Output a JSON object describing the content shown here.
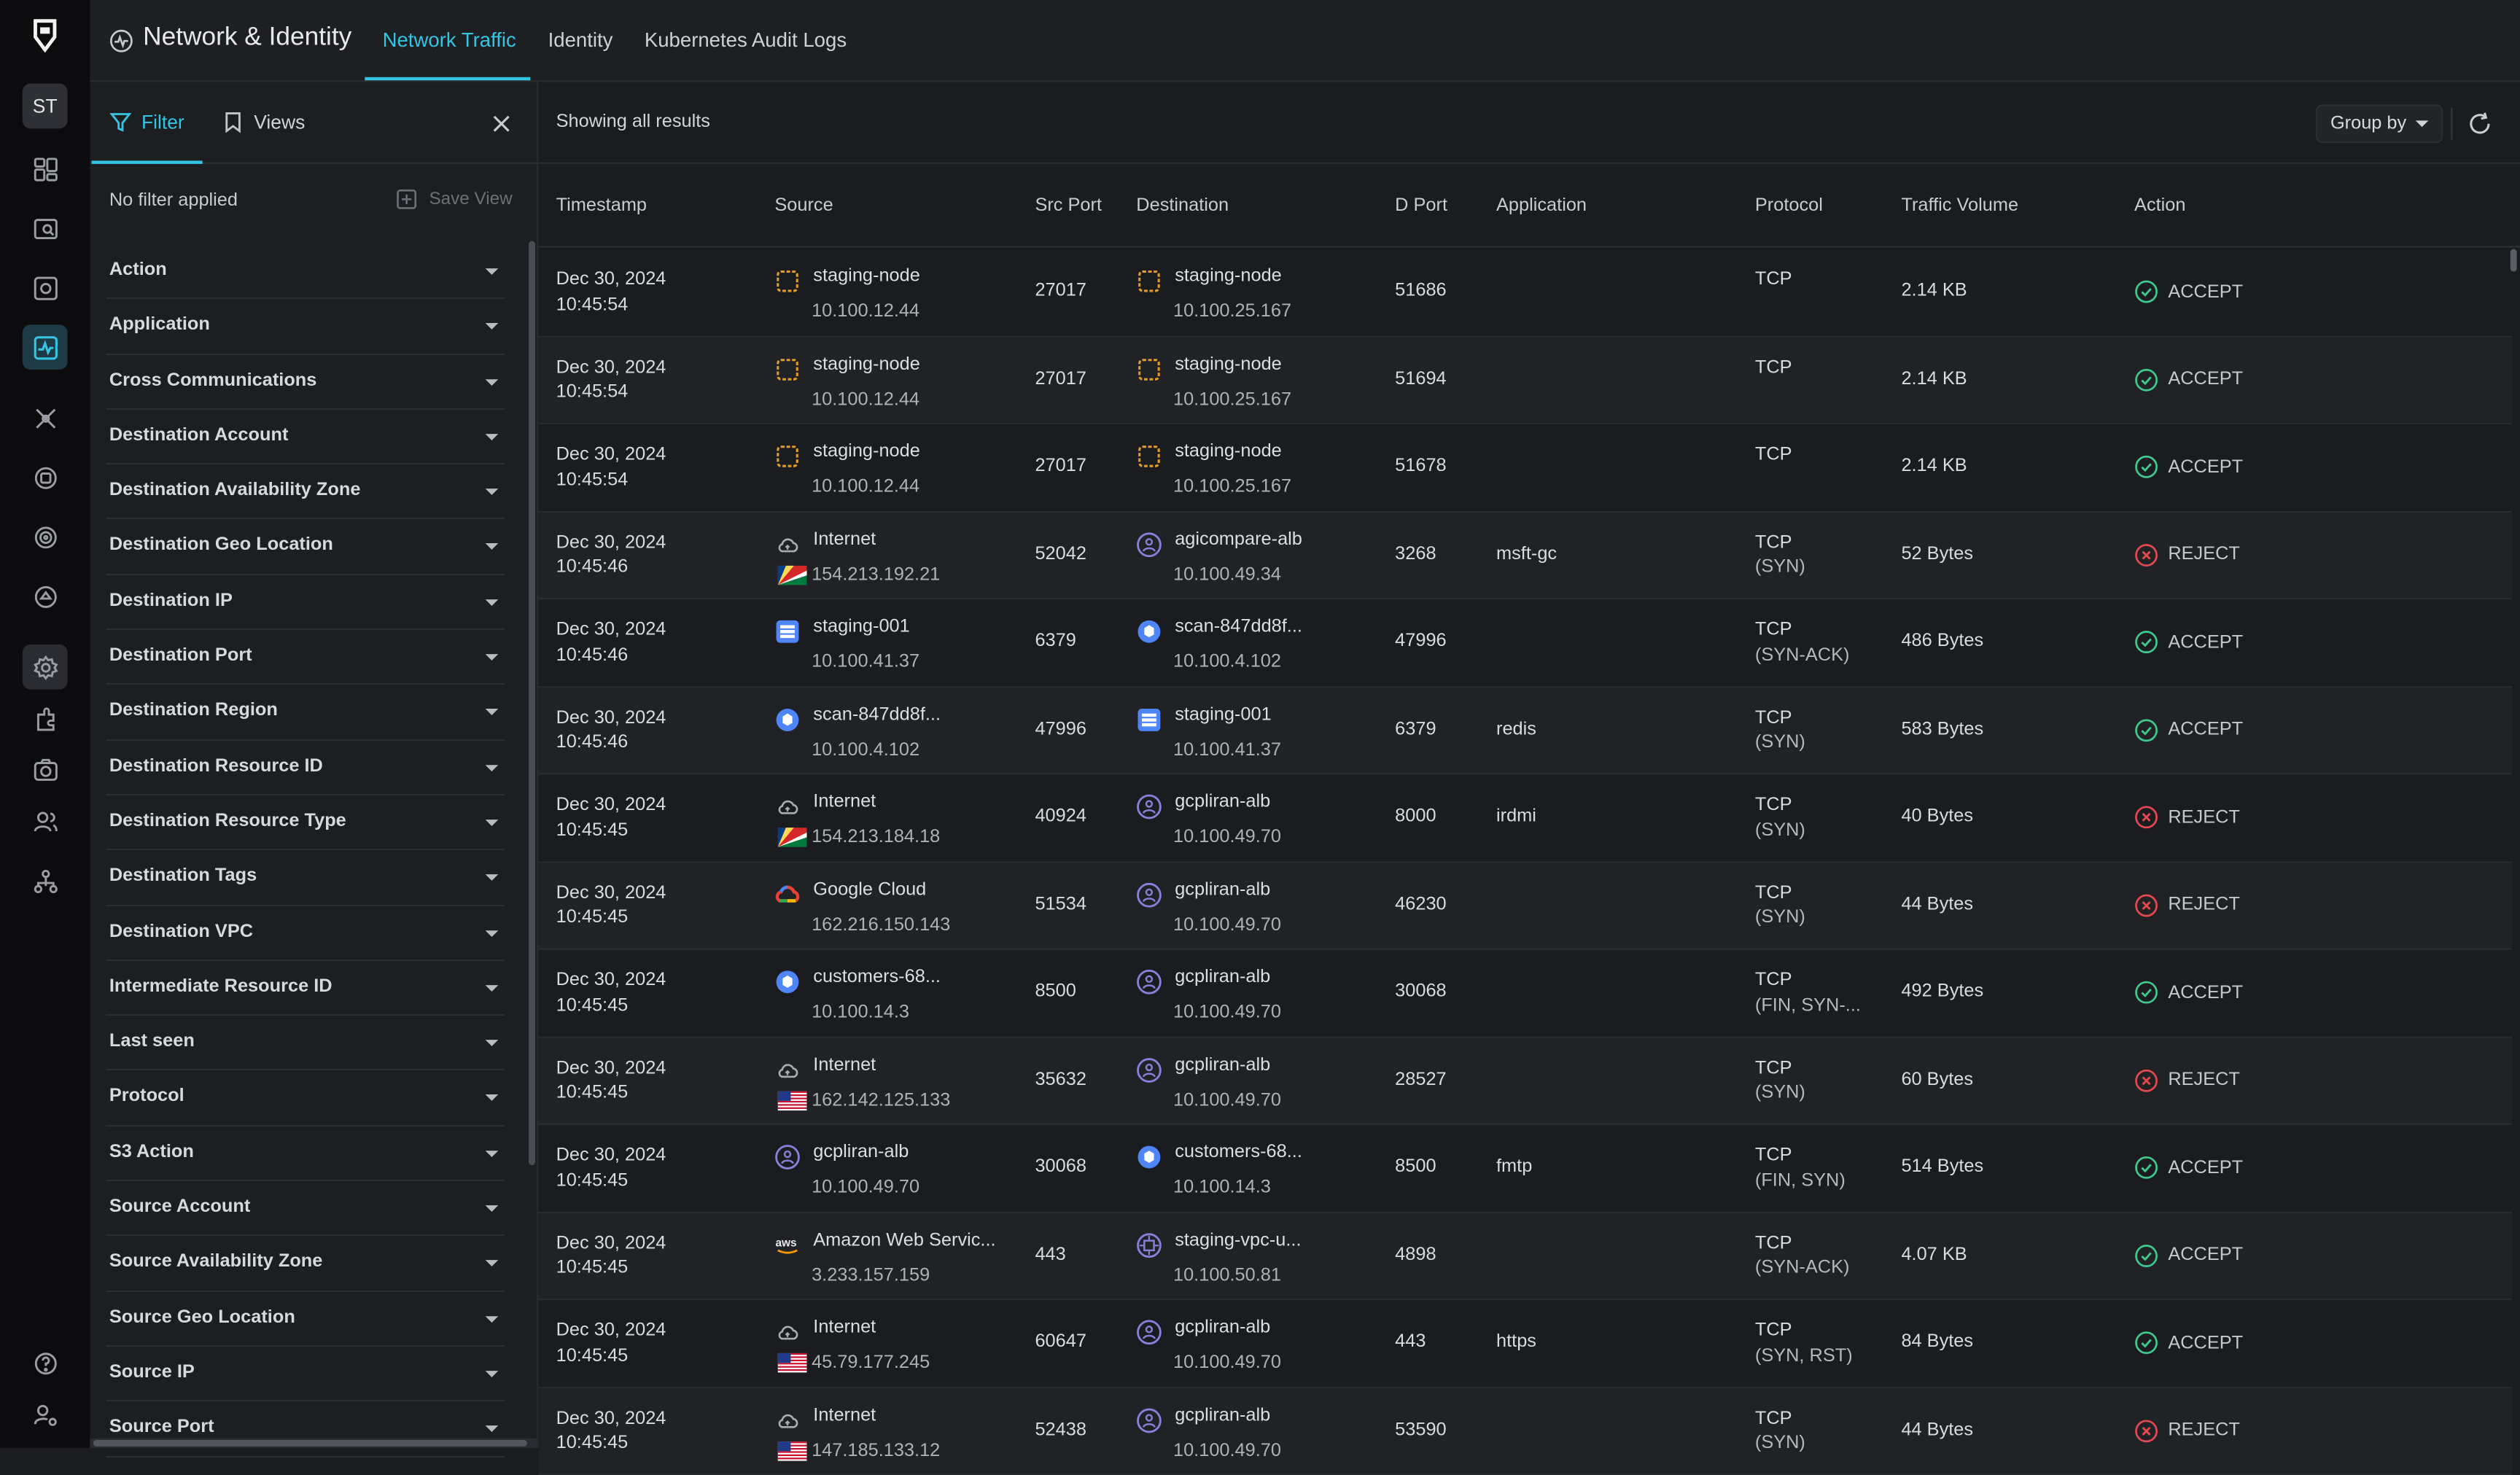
{
  "rail": {
    "avatar": "ST",
    "icons": [
      "logo-icon",
      "dashboard-icon",
      "inventory-icon",
      "findings-icon",
      "network-icon",
      "attack-path-icon",
      "compliance-icon",
      "vulnerability-icon",
      "policy-icon",
      "settings-icon",
      "integrations-icon",
      "assets-icon",
      "users-icon",
      "organization-icon",
      "help-icon",
      "user-settings-icon"
    ]
  },
  "header": {
    "title": "Network & Identity",
    "tabs": [
      "Network Traffic",
      "Identity",
      "Kubernetes Audit Logs"
    ]
  },
  "filter_panel": {
    "tabs": [
      "Filter",
      "Views"
    ],
    "status": "No filter applied",
    "save_view": "Save View",
    "items": [
      "Action",
      "Application",
      "Cross Communications",
      "Destination Account",
      "Destination Availability Zone",
      "Destination Geo Location",
      "Destination IP",
      "Destination Port",
      "Destination Region",
      "Destination Resource ID",
      "Destination Resource Type",
      "Destination Tags",
      "Destination VPC",
      "Intermediate Resource ID",
      "Last seen",
      "Protocol",
      "S3 Action",
      "Source Account",
      "Source Availability Zone",
      "Source Geo Location",
      "Source IP",
      "Source Port"
    ]
  },
  "toolbar": {
    "showing": "Showing all results",
    "group_by": "Group by"
  },
  "table": {
    "columns": [
      "Timestamp",
      "Source",
      "Src Port",
      "Destination",
      "D Port",
      "Application",
      "Protocol",
      "Traffic Volume",
      "Action"
    ],
    "rows": [
      {
        "date": "Dec 30, 2024",
        "time": "10:45:54",
        "src_name": "staging-node",
        "src_ip": "10.100.12.44",
        "src_icon": "node-icon",
        "src_port": "27017",
        "dst_name": "staging-node",
        "dst_ip": "10.100.25.167",
        "dst_icon": "node-icon",
        "dst_port": "51686",
        "app": "",
        "proto": "TCP",
        "flags": "",
        "volume": "2.14 KB",
        "action": "ACCEPT"
      },
      {
        "date": "Dec 30, 2024",
        "time": "10:45:54",
        "src_name": "staging-node",
        "src_ip": "10.100.12.44",
        "src_icon": "node-icon",
        "src_port": "27017",
        "dst_name": "staging-node",
        "dst_ip": "10.100.25.167",
        "dst_icon": "node-icon",
        "dst_port": "51694",
        "app": "",
        "proto": "TCP",
        "flags": "",
        "volume": "2.14 KB",
        "action": "ACCEPT"
      },
      {
        "date": "Dec 30, 2024",
        "time": "10:45:54",
        "src_name": "staging-node",
        "src_ip": "10.100.12.44",
        "src_icon": "node-icon",
        "src_port": "27017",
        "dst_name": "staging-node",
        "dst_ip": "10.100.25.167",
        "dst_icon": "node-icon",
        "dst_port": "51678",
        "app": "",
        "proto": "TCP",
        "flags": "",
        "volume": "2.14 KB",
        "action": "ACCEPT"
      },
      {
        "date": "Dec 30, 2024",
        "time": "10:45:46",
        "src_name": "Internet",
        "src_ip": "154.213.192.21",
        "src_icon": "cloud-icon",
        "src_flag": "seychelles-flag-icon",
        "src_port": "52042",
        "dst_name": "agicompare-alb",
        "dst_ip": "10.100.49.34",
        "dst_icon": "load-balancer-icon",
        "dst_port": "3268",
        "app": "msft-gc",
        "proto": "TCP",
        "flags": "(SYN)",
        "volume": "52 Bytes",
        "action": "REJECT"
      },
      {
        "date": "Dec 30, 2024",
        "time": "10:45:46",
        "src_name": "staging-001",
        "src_ip": "10.100.41.37",
        "src_icon": "database-icon",
        "src_port": "6379",
        "dst_name": "scan-847dd8f...",
        "dst_ip": "10.100.4.102",
        "dst_icon": "pod-icon",
        "dst_port": "47996",
        "app": "",
        "proto": "TCP",
        "flags": "(SYN-ACK)",
        "volume": "486 Bytes",
        "action": "ACCEPT"
      },
      {
        "date": "Dec 30, 2024",
        "time": "10:45:46",
        "src_name": "scan-847dd8f...",
        "src_ip": "10.100.4.102",
        "src_icon": "pod-icon",
        "src_port": "47996",
        "dst_name": "staging-001",
        "dst_ip": "10.100.41.37",
        "dst_icon": "database-icon",
        "dst_port": "6379",
        "app": "redis",
        "proto": "TCP",
        "flags": "(SYN)",
        "volume": "583 Bytes",
        "action": "ACCEPT"
      },
      {
        "date": "Dec 30, 2024",
        "time": "10:45:45",
        "src_name": "Internet",
        "src_ip": "154.213.184.18",
        "src_icon": "cloud-icon",
        "src_flag": "seychelles-flag-icon",
        "src_port": "40924",
        "dst_name": "gcpliran-alb",
        "dst_ip": "10.100.49.70",
        "dst_icon": "load-balancer-icon",
        "dst_port": "8000",
        "app": "irdmi",
        "proto": "TCP",
        "flags": "(SYN)",
        "volume": "40 Bytes",
        "action": "REJECT"
      },
      {
        "date": "Dec 30, 2024",
        "time": "10:45:45",
        "src_name": "Google Cloud",
        "src_ip": "162.216.150.143",
        "src_icon": "google-cloud-icon",
        "src_port": "51534",
        "dst_name": "gcpliran-alb",
        "dst_ip": "10.100.49.70",
        "dst_icon": "load-balancer-icon",
        "dst_port": "46230",
        "app": "",
        "proto": "TCP",
        "flags": "(SYN)",
        "volume": "44 Bytes",
        "action": "REJECT"
      },
      {
        "date": "Dec 30, 2024",
        "time": "10:45:45",
        "src_name": "customers-68...",
        "src_ip": "10.100.14.3",
        "src_icon": "pod-icon",
        "src_port": "8500",
        "dst_name": "gcpliran-alb",
        "dst_ip": "10.100.49.70",
        "dst_icon": "load-balancer-icon",
        "dst_port": "30068",
        "app": "",
        "proto": "TCP",
        "flags": "(FIN, SYN-...",
        "volume": "492 Bytes",
        "action": "ACCEPT"
      },
      {
        "date": "Dec 30, 2024",
        "time": "10:45:45",
        "src_name": "Internet",
        "src_ip": "162.142.125.133",
        "src_icon": "cloud-icon",
        "src_flag": "usa-flag-icon",
        "src_port": "35632",
        "dst_name": "gcpliran-alb",
        "dst_ip": "10.100.49.70",
        "dst_icon": "load-balancer-icon",
        "dst_port": "28527",
        "app": "",
        "proto": "TCP",
        "flags": "(SYN)",
        "volume": "60 Bytes",
        "action": "REJECT"
      },
      {
        "date": "Dec 30, 2024",
        "time": "10:45:45",
        "src_name": "gcpliran-alb",
        "src_ip": "10.100.49.70",
        "src_icon": "load-balancer-icon",
        "src_port": "30068",
        "dst_name": "customers-68...",
        "dst_ip": "10.100.14.3",
        "dst_icon": "pod-icon",
        "dst_port": "8500",
        "app": "fmtp",
        "proto": "TCP",
        "flags": "(FIN, SYN)",
        "volume": "514 Bytes",
        "action": "ACCEPT"
      },
      {
        "date": "Dec 30, 2024",
        "time": "10:45:45",
        "src_name": "Amazon Web Servic...",
        "src_ip": "3.233.157.159",
        "src_icon": "aws-icon",
        "src_port": "443",
        "dst_name": "staging-vpc-u...",
        "dst_ip": "10.100.50.81",
        "dst_icon": "vpc-endpoint-icon",
        "dst_port": "4898",
        "app": "",
        "proto": "TCP",
        "flags": "(SYN-ACK)",
        "volume": "4.07 KB",
        "action": "ACCEPT"
      },
      {
        "date": "Dec 30, 2024",
        "time": "10:45:45",
        "src_name": "Internet",
        "src_ip": "45.79.177.245",
        "src_icon": "cloud-icon",
        "src_flag": "usa-flag-icon",
        "src_port": "60647",
        "dst_name": "gcpliran-alb",
        "dst_ip": "10.100.49.70",
        "dst_icon": "load-balancer-icon",
        "dst_port": "443",
        "app": "https",
        "proto": "TCP",
        "flags": "(SYN, RST)",
        "volume": "84 Bytes",
        "action": "ACCEPT"
      },
      {
        "date": "Dec 30, 2024",
        "time": "10:45:45",
        "src_name": "Internet",
        "src_ip": "147.185.133.12",
        "src_icon": "cloud-icon",
        "src_flag": "usa-flag-icon",
        "src_port": "52438",
        "dst_name": "gcpliran-alb",
        "dst_ip": "10.100.49.70",
        "dst_icon": "load-balancer-icon",
        "dst_port": "53590",
        "app": "",
        "proto": "TCP",
        "flags": "(SYN)",
        "volume": "44 Bytes",
        "action": "REJECT"
      }
    ]
  },
  "colors": {
    "accent": "#35c4e2",
    "accept": "#3fc98c",
    "reject": "#e5484d",
    "node": "#e39b2a",
    "alb": "#8a7fd9",
    "pod": "#4f86f7"
  }
}
